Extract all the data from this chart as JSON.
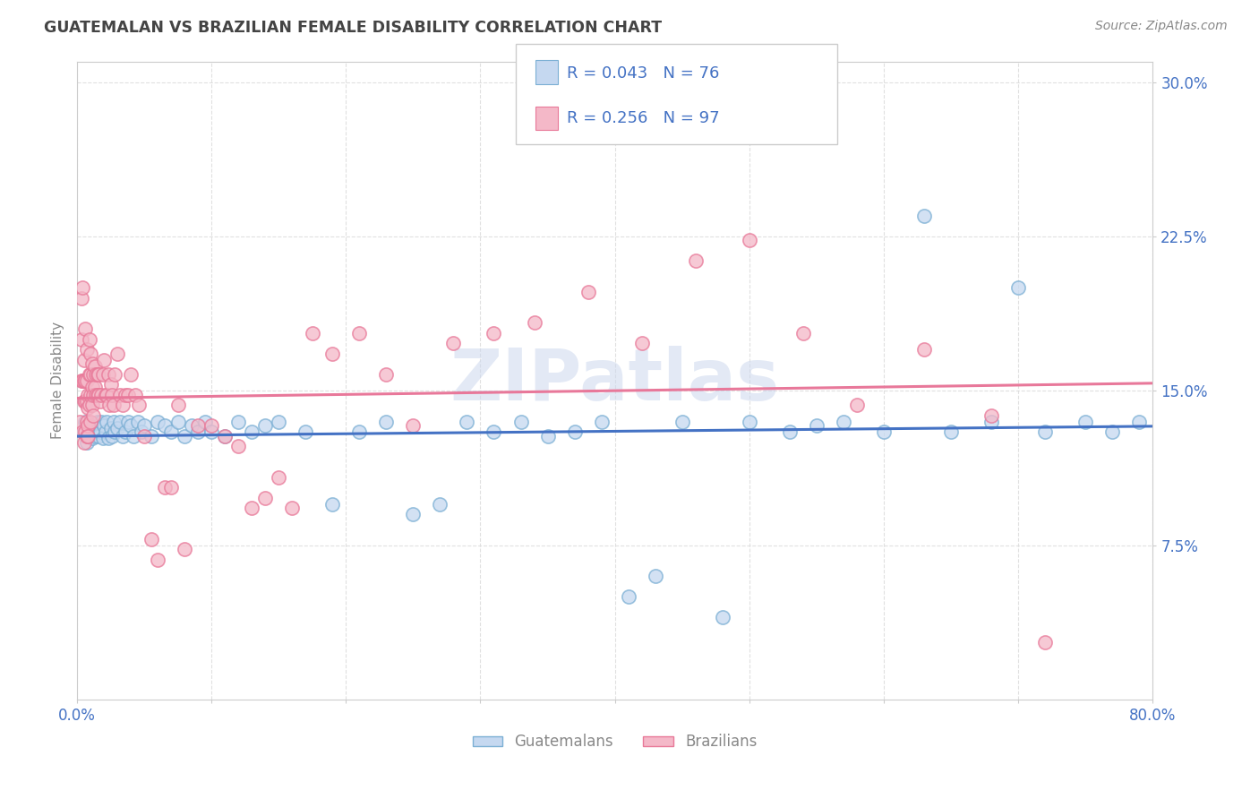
{
  "title": "GUATEMALAN VS BRAZILIAN FEMALE DISABILITY CORRELATION CHART",
  "source": "Source: ZipAtlas.com",
  "ylabel": "Female Disability",
  "xlim": [
    0.0,
    0.8
  ],
  "ylim": [
    0.0,
    0.31
  ],
  "yticks": [
    0.075,
    0.15,
    0.225,
    0.3
  ],
  "ytick_labels": [
    "7.5%",
    "15.0%",
    "22.5%",
    "30.0%"
  ],
  "series": [
    {
      "name": "Guatemalans",
      "face_color": "#c5d8f0",
      "edge_color": "#7bafd4",
      "line_color": "#4472c4",
      "R": 0.043,
      "N": 76,
      "x": [
        0.005,
        0.006,
        0.007,
        0.008,
        0.009,
        0.01,
        0.011,
        0.012,
        0.013,
        0.015,
        0.016,
        0.017,
        0.018,
        0.019,
        0.02,
        0.021,
        0.022,
        0.023,
        0.025,
        0.026,
        0.027,
        0.028,
        0.03,
        0.032,
        0.034,
        0.036,
        0.038,
        0.04,
        0.042,
        0.045,
        0.048,
        0.05,
        0.055,
        0.06,
        0.065,
        0.07,
        0.075,
        0.08,
        0.085,
        0.09,
        0.095,
        0.1,
        0.11,
        0.12,
        0.13,
        0.14,
        0.15,
        0.17,
        0.19,
        0.21,
        0.23,
        0.25,
        0.27,
        0.29,
        0.31,
        0.33,
        0.35,
        0.37,
        0.39,
        0.41,
        0.43,
        0.45,
        0.48,
        0.5,
        0.53,
        0.55,
        0.57,
        0.6,
        0.63,
        0.65,
        0.68,
        0.7,
        0.72,
        0.75,
        0.77,
        0.79
      ],
      "y": [
        0.13,
        0.135,
        0.125,
        0.13,
        0.128,
        0.132,
        0.127,
        0.133,
        0.128,
        0.135,
        0.128,
        0.13,
        0.135,
        0.127,
        0.133,
        0.13,
        0.135,
        0.127,
        0.132,
        0.128,
        0.135,
        0.13,
        0.132,
        0.135,
        0.128,
        0.13,
        0.135,
        0.133,
        0.128,
        0.135,
        0.13,
        0.133,
        0.128,
        0.135,
        0.133,
        0.13,
        0.135,
        0.128,
        0.133,
        0.13,
        0.135,
        0.13,
        0.128,
        0.135,
        0.13,
        0.133,
        0.135,
        0.13,
        0.095,
        0.13,
        0.135,
        0.09,
        0.095,
        0.135,
        0.13,
        0.135,
        0.128,
        0.13,
        0.135,
        0.05,
        0.06,
        0.135,
        0.04,
        0.135,
        0.13,
        0.133,
        0.135,
        0.13,
        0.235,
        0.13,
        0.135,
        0.2,
        0.13,
        0.135,
        0.13,
        0.135
      ]
    },
    {
      "name": "Brazilians",
      "face_color": "#f4b8c8",
      "edge_color": "#e87898",
      "line_color": "#e8789a",
      "R": 0.256,
      "N": 97,
      "x": [
        0.002,
        0.003,
        0.003,
        0.003,
        0.004,
        0.004,
        0.004,
        0.005,
        0.005,
        0.005,
        0.005,
        0.006,
        0.006,
        0.006,
        0.006,
        0.007,
        0.007,
        0.007,
        0.007,
        0.007,
        0.008,
        0.008,
        0.008,
        0.008,
        0.009,
        0.009,
        0.009,
        0.01,
        0.01,
        0.01,
        0.01,
        0.011,
        0.011,
        0.011,
        0.012,
        0.012,
        0.012,
        0.013,
        0.013,
        0.014,
        0.014,
        0.015,
        0.015,
        0.016,
        0.016,
        0.017,
        0.018,
        0.019,
        0.02,
        0.021,
        0.022,
        0.023,
        0.024,
        0.025,
        0.026,
        0.027,
        0.028,
        0.03,
        0.032,
        0.034,
        0.036,
        0.038,
        0.04,
        0.043,
        0.046,
        0.05,
        0.055,
        0.06,
        0.065,
        0.07,
        0.075,
        0.08,
        0.09,
        0.1,
        0.11,
        0.12,
        0.13,
        0.14,
        0.15,
        0.16,
        0.175,
        0.19,
        0.21,
        0.23,
        0.25,
        0.28,
        0.31,
        0.34,
        0.38,
        0.42,
        0.46,
        0.5,
        0.54,
        0.58,
        0.63,
        0.68,
        0.72
      ],
      "y": [
        0.135,
        0.155,
        0.175,
        0.195,
        0.2,
        0.155,
        0.13,
        0.155,
        0.165,
        0.125,
        0.145,
        0.18,
        0.155,
        0.145,
        0.13,
        0.17,
        0.155,
        0.145,
        0.135,
        0.128,
        0.148,
        0.142,
        0.133,
        0.128,
        0.175,
        0.158,
        0.143,
        0.168,
        0.158,
        0.148,
        0.135,
        0.163,
        0.152,
        0.143,
        0.158,
        0.148,
        0.138,
        0.162,
        0.152,
        0.158,
        0.148,
        0.158,
        0.148,
        0.158,
        0.148,
        0.145,
        0.148,
        0.158,
        0.165,
        0.148,
        0.148,
        0.158,
        0.143,
        0.153,
        0.148,
        0.143,
        0.158,
        0.168,
        0.148,
        0.143,
        0.148,
        0.148,
        0.158,
        0.148,
        0.143,
        0.128,
        0.078,
        0.068,
        0.103,
        0.103,
        0.143,
        0.073,
        0.133,
        0.133,
        0.128,
        0.123,
        0.093,
        0.098,
        0.108,
        0.093,
        0.178,
        0.168,
        0.178,
        0.158,
        0.133,
        0.173,
        0.178,
        0.183,
        0.198,
        0.173,
        0.213,
        0.223,
        0.178,
        0.143,
        0.17,
        0.138,
        0.028
      ]
    }
  ],
  "watermark": "ZIPatlas",
  "background_color": "#ffffff",
  "title_color": "#444444",
  "source_color": "#888888",
  "grid_color": "#dddddd",
  "tick_color": "#4472c4",
  "axis_label_color": "#888888"
}
